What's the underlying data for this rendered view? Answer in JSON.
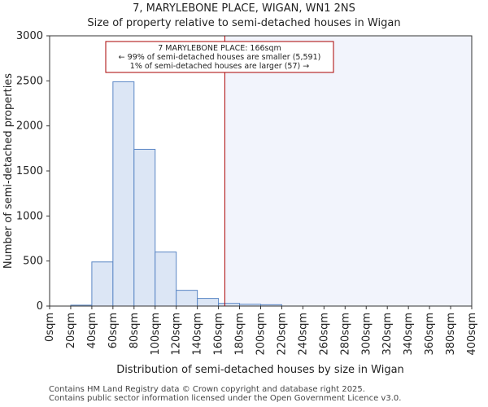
{
  "chart_data": {
    "type": "bar",
    "title": "7, MARYLEBONE PLACE, WIGAN, WN1 2NS",
    "subtitle": "Size of property relative to semi-detached houses in Wigan",
    "xlabel": "Distribution of semi-detached houses by size in Wigan",
    "ylabel": "Number of semi-detached properties",
    "bin_edges": [
      0,
      20,
      40,
      60,
      80,
      100,
      120,
      140,
      160,
      180,
      200,
      220,
      240,
      260,
      280,
      300,
      320,
      340,
      360,
      380,
      400
    ],
    "values": [
      0,
      10,
      490,
      2490,
      1740,
      600,
      175,
      85,
      30,
      20,
      15,
      0,
      0,
      0,
      0,
      0,
      0,
      0,
      0,
      0
    ],
    "tick_labels": [
      "0sqm",
      "20sqm",
      "40sqm",
      "60sqm",
      "80sqm",
      "100sqm",
      "120sqm",
      "140sqm",
      "160sqm",
      "180sqm",
      "200sqm",
      "220sqm",
      "240sqm",
      "260sqm",
      "280sqm",
      "300sqm",
      "320sqm",
      "340sqm",
      "360sqm",
      "380sqm",
      "400sqm"
    ],
    "yticks": [
      0,
      500,
      1000,
      1500,
      2000,
      2500,
      3000
    ],
    "ylim": [
      0,
      3000
    ],
    "xlim": [
      0,
      400
    ],
    "marker": {
      "x": 166
    },
    "annotation": {
      "line1": "7 MARYLEBONE PLACE: 166sqm",
      "line2": "← 99% of semi-detached houses are smaller (5,591)",
      "line3": "1% of semi-detached houses are larger (57) →"
    },
    "colors": {
      "bar_fill": "#dce6f5",
      "bar_edge": "#5b87c5",
      "marker": "#aa0000",
      "highlight": "#f2f4fc"
    }
  },
  "footer": {
    "line1": "Contains HM Land Registry data © Crown copyright and database right 2025.",
    "line2": "Contains public sector information licensed under the Open Government Licence v3.0."
  }
}
